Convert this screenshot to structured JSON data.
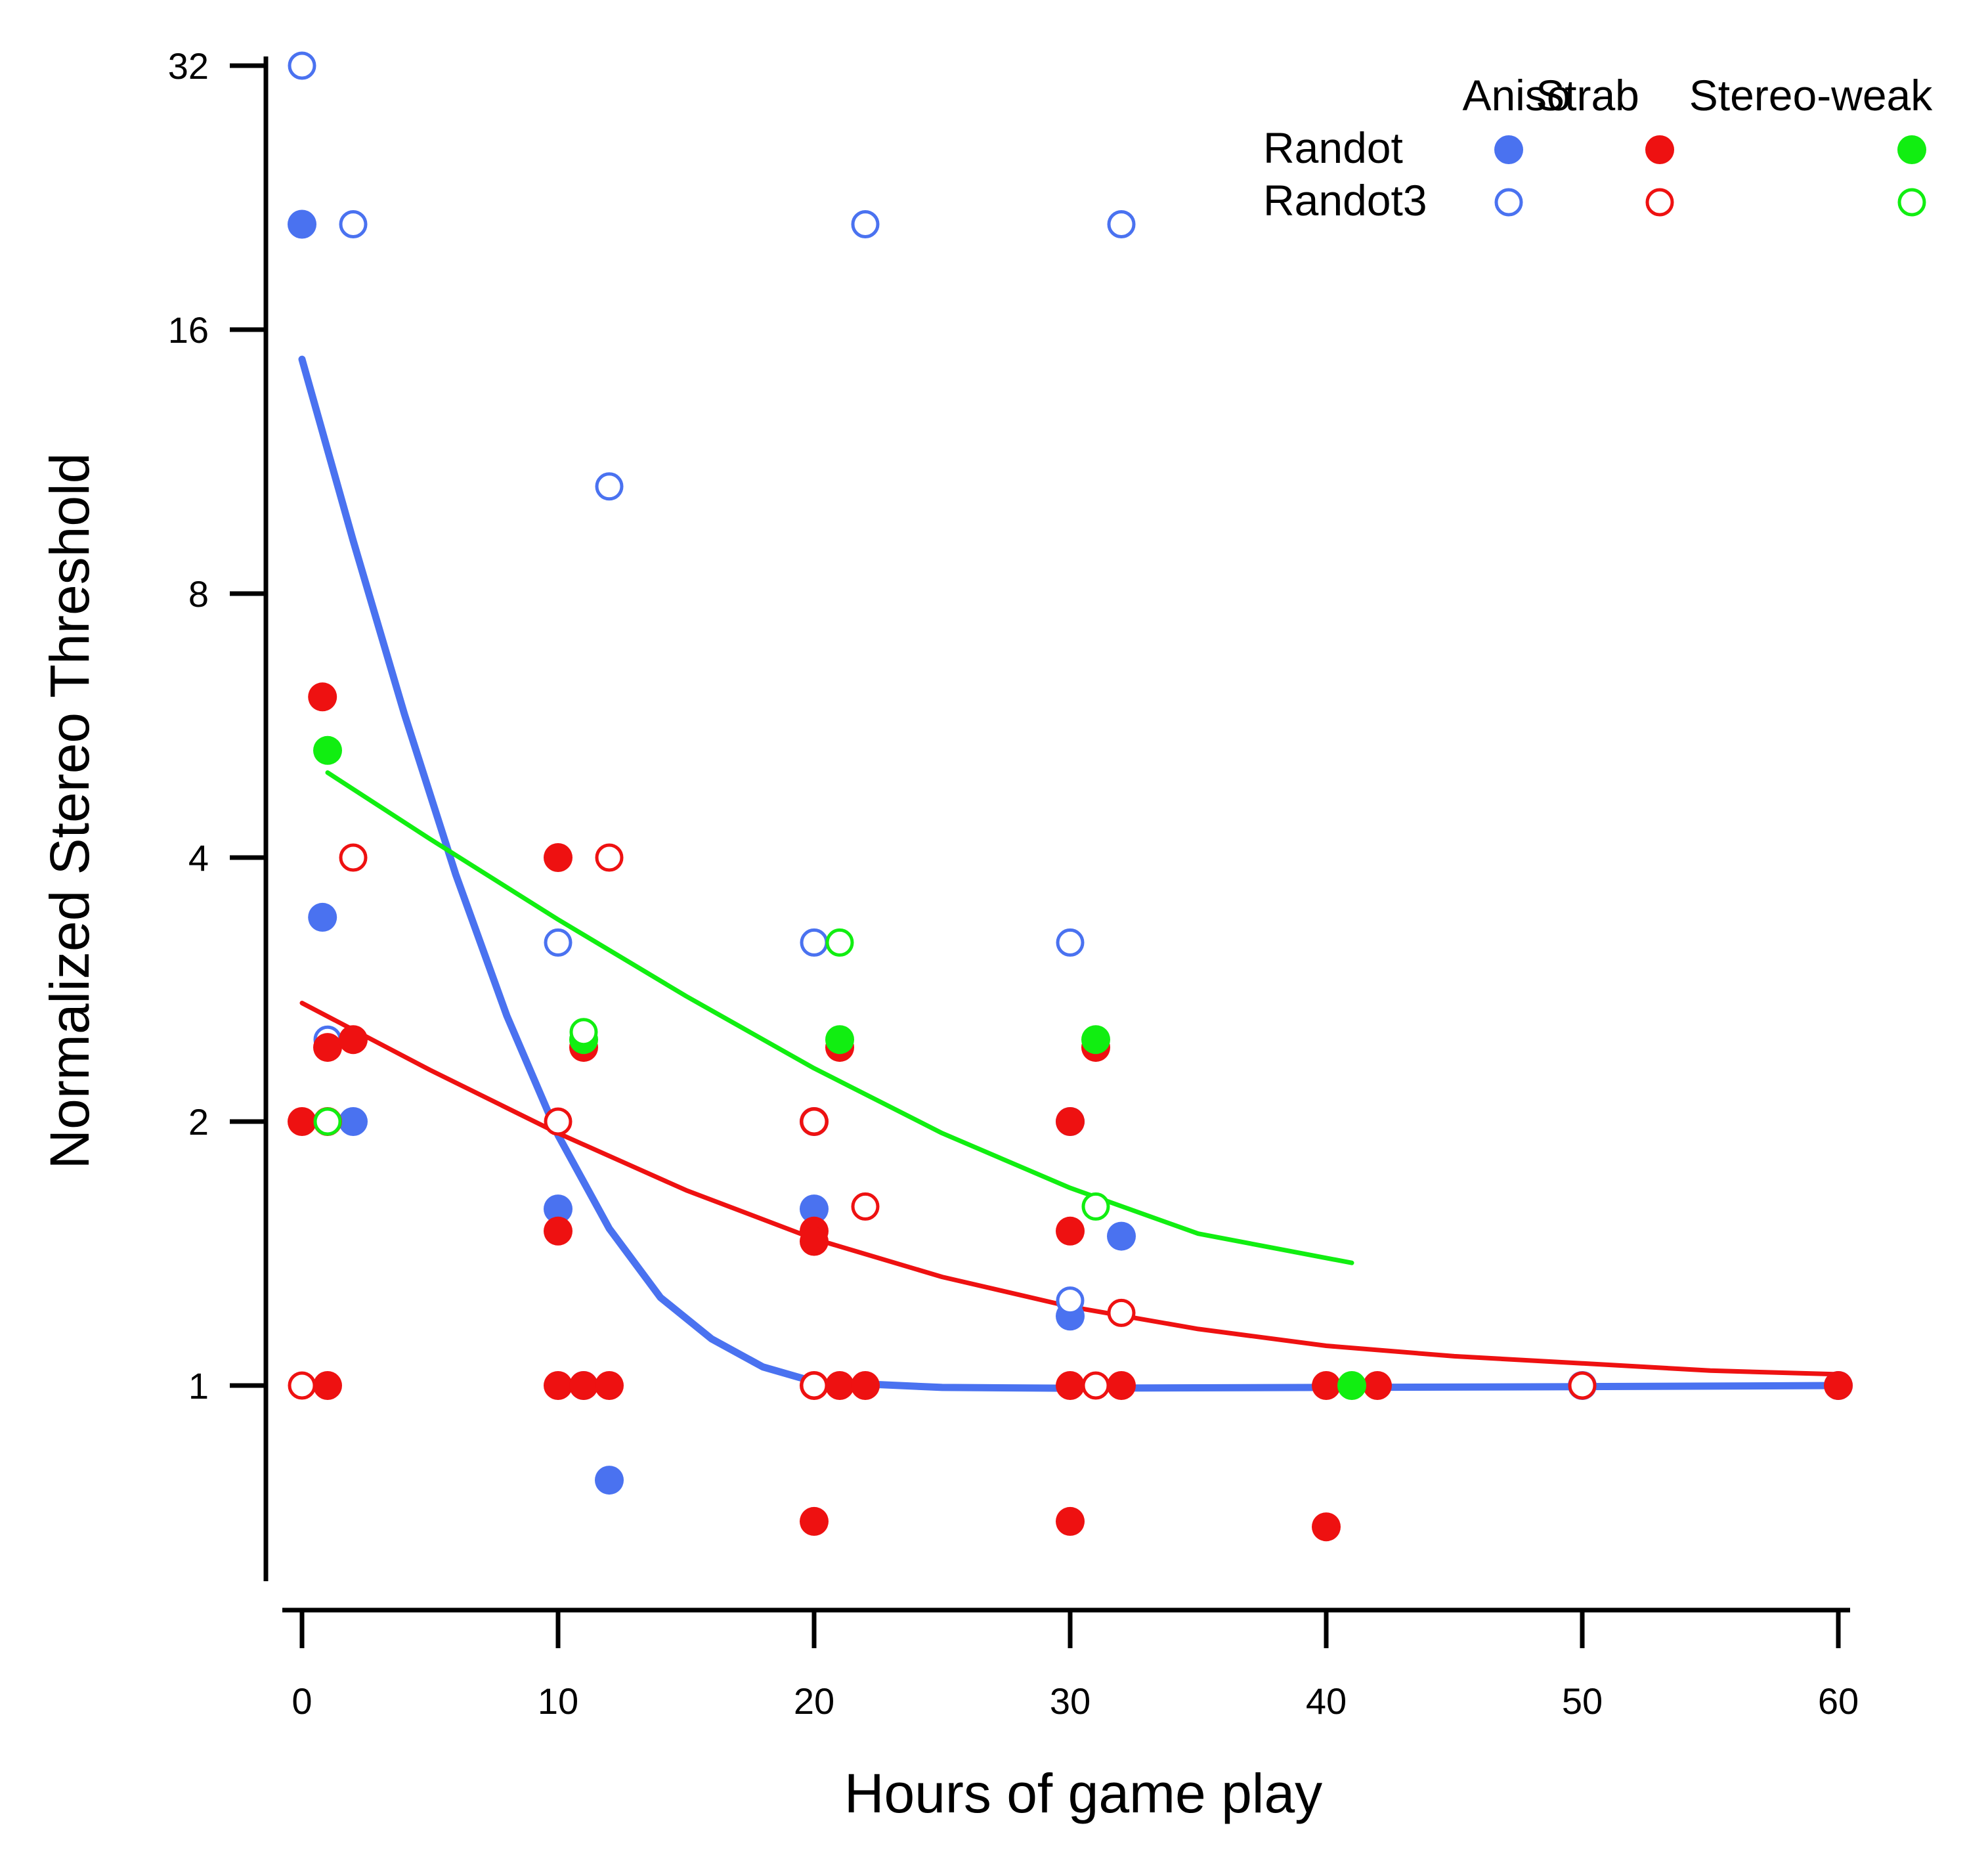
{
  "chart_data": {
    "type": "scatter",
    "xlabel": "Hours of game play",
    "ylabel": "Normalized Stereo Threshold",
    "xlim": [
      0,
      60
    ],
    "ylim": [
      0.45,
      32
    ],
    "yscale": "log2",
    "xticks": [
      0,
      10,
      20,
      30,
      40,
      50,
      60
    ],
    "yticks": [
      1,
      2,
      4,
      8,
      16,
      32
    ],
    "grid": false,
    "legend": {
      "placement": "top-right",
      "columns": [
        "Aniso",
        "Strab",
        "Stereo-weak"
      ],
      "rows": [
        "Randot",
        "Randot3"
      ]
    },
    "colors": {
      "Aniso": "#4a72f0",
      "Strab": "#ee1111",
      "Stereo-weak": "#11ee11"
    },
    "series": [
      {
        "group": "Aniso",
        "test": "Randot",
        "filled": true,
        "points": [
          [
            0,
            21.1
          ],
          [
            0.8,
            3.42
          ],
          [
            2,
            2
          ],
          [
            10,
            1.59
          ],
          [
            11,
            1
          ],
          [
            12,
            0.78
          ],
          [
            20,
            2
          ],
          [
            20,
            1.59
          ],
          [
            30,
            2
          ],
          [
            30,
            1.2
          ],
          [
            32,
            1.48
          ],
          [
            50,
            1
          ],
          [
            60,
            1
          ]
        ]
      },
      {
        "group": "Aniso",
        "test": "Randot3",
        "filled": false,
        "points": [
          [
            0,
            32
          ],
          [
            2,
            21.1
          ],
          [
            22,
            21.1
          ],
          [
            32,
            21.1
          ],
          [
            12,
            10.6
          ],
          [
            10,
            3.2
          ],
          [
            1,
            2.48
          ],
          [
            20,
            3.2
          ],
          [
            30,
            3.2
          ],
          [
            30,
            1.25
          ]
        ]
      },
      {
        "group": "Strab",
        "test": "Randot",
        "filled": true,
        "points": [
          [
            0.8,
            6.1
          ],
          [
            1,
            2.43
          ],
          [
            2,
            2.48
          ],
          [
            0,
            2
          ],
          [
            1,
            2
          ],
          [
            1,
            1
          ],
          [
            10,
            4
          ],
          [
            11,
            2.43
          ],
          [
            10,
            1.5
          ],
          [
            10,
            1
          ],
          [
            11,
            1
          ],
          [
            12,
            1
          ],
          [
            20,
            2
          ],
          [
            20,
            1.5
          ],
          [
            20,
            1.46
          ],
          [
            21,
            2.43
          ],
          [
            20,
            0.7
          ],
          [
            20,
            1
          ],
          [
            21,
            1
          ],
          [
            22,
            1
          ],
          [
            30,
            2
          ],
          [
            31,
            2.43
          ],
          [
            30,
            1.5
          ],
          [
            30,
            1
          ],
          [
            32,
            1
          ],
          [
            30,
            0.7
          ],
          [
            40,
            1
          ],
          [
            42,
            1
          ],
          [
            40,
            0.69
          ],
          [
            60,
            1
          ]
        ]
      },
      {
        "group": "Strab",
        "test": "Randot3",
        "filled": false,
        "points": [
          [
            0,
            1
          ],
          [
            2,
            4
          ],
          [
            12,
            4
          ],
          [
            10,
            2
          ],
          [
            20,
            2
          ],
          [
            22,
            1.6
          ],
          [
            20,
            1
          ],
          [
            31,
            1
          ],
          [
            32,
            1.21
          ],
          [
            50,
            1
          ]
        ]
      },
      {
        "group": "Stereo-weak",
        "test": "Randot",
        "filled": true,
        "points": [
          [
            1,
            5.3
          ],
          [
            11,
            2.48
          ],
          [
            21,
            2.48
          ],
          [
            31,
            2.48
          ],
          [
            41,
            1
          ]
        ]
      },
      {
        "group": "Stereo-weak",
        "test": "Randot3",
        "filled": false,
        "points": [
          [
            1,
            2
          ],
          [
            11,
            2.53
          ],
          [
            21,
            3.2
          ],
          [
            31,
            1.6
          ]
        ]
      }
    ],
    "fits": [
      {
        "group": "Aniso",
        "points": [
          [
            0,
            14.8
          ],
          [
            2,
            9.19
          ],
          [
            4,
            5.83
          ],
          [
            6,
            3.83
          ],
          [
            8,
            2.64
          ],
          [
            10,
            1.93
          ],
          [
            12,
            1.51
          ],
          [
            14,
            1.26
          ],
          [
            16,
            1.13
          ],
          [
            18,
            1.05
          ],
          [
            20,
            1.01
          ],
          [
            25,
            0.995
          ],
          [
            30,
            0.993
          ],
          [
            40,
            0.995
          ],
          [
            50,
            0.997
          ],
          [
            60,
            1
          ]
        ]
      },
      {
        "group": "Strab",
        "points": [
          [
            0,
            2.73
          ],
          [
            5,
            2.29
          ],
          [
            10,
            1.94
          ],
          [
            15,
            1.67
          ],
          [
            20,
            1.47
          ],
          [
            25,
            1.33
          ],
          [
            30,
            1.23
          ],
          [
            35,
            1.16
          ],
          [
            40,
            1.11
          ],
          [
            45,
            1.08
          ],
          [
            50,
            1.06
          ],
          [
            55,
            1.04
          ],
          [
            60,
            1.03
          ]
        ]
      },
      {
        "group": "Stereo-weak",
        "points": [
          [
            1,
            5.0
          ],
          [
            5,
            4.2
          ],
          [
            10,
            3.4
          ],
          [
            15,
            2.78
          ],
          [
            20,
            2.3
          ],
          [
            25,
            1.94
          ],
          [
            30,
            1.68
          ],
          [
            35,
            1.49
          ],
          [
            41,
            1.38
          ]
        ]
      }
    ]
  }
}
